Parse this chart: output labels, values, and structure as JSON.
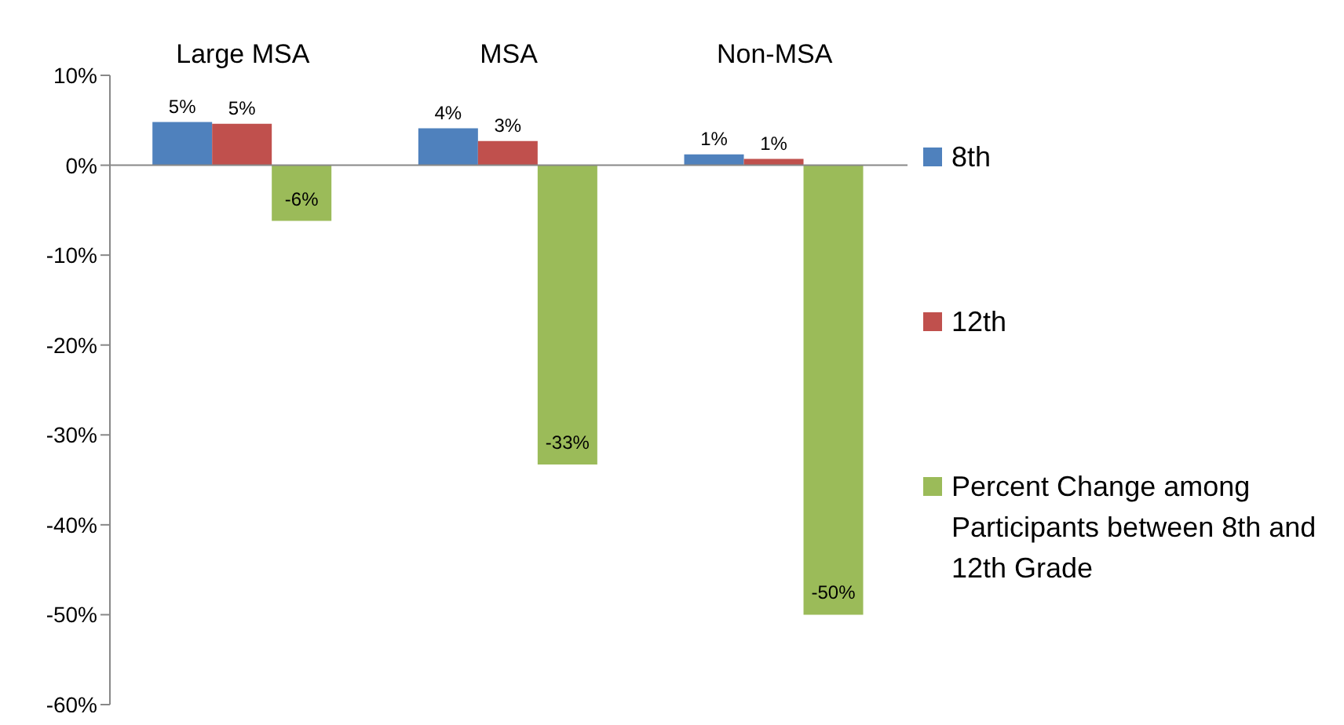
{
  "chart_data": {
    "type": "bar",
    "categories": [
      "Large MSA",
      "MSA",
      "Non-MSA"
    ],
    "series": [
      {
        "name": "8th",
        "color": "#4f81bd",
        "values": [
          4.8,
          4.1,
          1.2
        ],
        "value_labels": [
          "5%",
          "4%",
          "1%"
        ]
      },
      {
        "name": "12th",
        "color": "#c0504d",
        "values": [
          4.6,
          2.7,
          0.7
        ],
        "value_labels": [
          "5%",
          "3%",
          "1%"
        ]
      },
      {
        "name": "Percent Change among Participants between 8th and 12th Grade",
        "color": "#9bbb59",
        "values": [
          -6.2,
          -33.3,
          -50
        ],
        "value_labels": [
          "-6%",
          "-33%",
          "-50%"
        ]
      }
    ],
    "ylim": [
      -60,
      10
    ],
    "yticks": [
      {
        "value": -60,
        "label": "-60%"
      },
      {
        "value": -50,
        "label": "-50%"
      },
      {
        "value": -40,
        "label": "-40%"
      },
      {
        "value": -30,
        "label": "-30%"
      },
      {
        "value": -20,
        "label": "-20%"
      },
      {
        "value": -10,
        "label": "-10%"
      },
      {
        "value": 0,
        "label": "0%"
      },
      {
        "value": 10,
        "label": "10%"
      }
    ],
    "ref_lines": [
      {
        "axis": "y",
        "value": 0,
        "color": "#888888"
      }
    ],
    "grid": false,
    "legend": "right"
  }
}
